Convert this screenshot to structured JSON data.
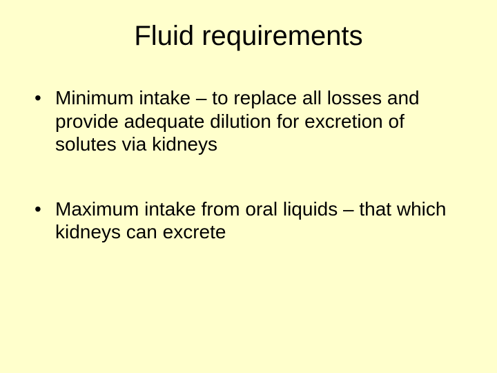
{
  "slide": {
    "title": "Fluid requirements",
    "bullets": [
      "Minimum intake – to replace all losses and provide adequate dilution for excretion of solutes via kidneys",
      "Maximum intake from oral liquids – that which kidneys can excrete"
    ],
    "background_color": "#ffffcc",
    "text_color": "#000000",
    "title_fontsize": 40,
    "body_fontsize": 28
  }
}
